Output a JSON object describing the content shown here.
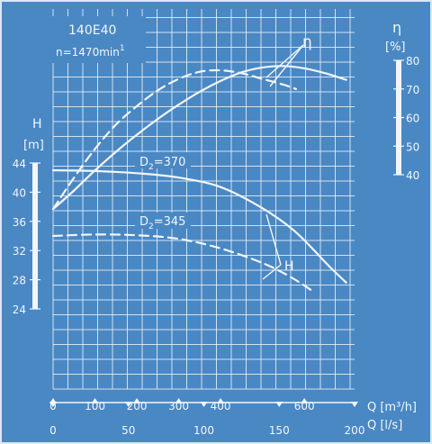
{
  "chart_data": {
    "type": "line",
    "title": "140E40",
    "subtitle": "n=1470min",
    "subtitle_sup": "1",
    "colors": {
      "background": "#4a88c4",
      "ink": "#f2f6fb"
    },
    "grid": true,
    "axes": {
      "H": {
        "label": "H",
        "unit": "[m]",
        "range": [
          24,
          44
        ],
        "ticks": [
          "24",
          "28",
          "32",
          "36",
          "40",
          "44"
        ]
      },
      "eta": {
        "label": "η",
        "unit": "[%]",
        "range": [
          40,
          80
        ],
        "ticks": [
          "40",
          "50",
          "60",
          "70",
          "80"
        ]
      },
      "Q_m3h": {
        "label": "Q [m³/h]",
        "range": [
          0,
          720
        ],
        "ticks": [
          "0",
          "100",
          "200",
          "300",
          "400",
          "600"
        ]
      },
      "Q_ls": {
        "label": "Q [l/s]",
        "range": [
          0,
          200
        ],
        "ticks": [
          "0",
          "50",
          "100",
          "150",
          "200"
        ]
      }
    },
    "annotations": {
      "head_curve_label": "H",
      "efficiency_curve_label": "η"
    },
    "series": [
      {
        "name": "D₂=370",
        "kind": "head",
        "style": "solid",
        "axis": "H",
        "label_parts": [
          "D",
          "2",
          "=370"
        ],
        "points": [
          [
            0,
            43
          ],
          [
            100,
            42.9
          ],
          [
            200,
            42.6
          ],
          [
            300,
            42
          ],
          [
            400,
            40.7
          ],
          [
            500,
            37.8
          ],
          [
            580,
            34.5
          ],
          [
            660,
            29.8
          ],
          [
            700,
            27.6
          ]
        ]
      },
      {
        "name": "D₂=345",
        "kind": "head",
        "style": "dashed",
        "axis": "H",
        "label_parts": [
          "D",
          "2",
          "=345"
        ],
        "points": [
          [
            0,
            34
          ],
          [
            100,
            34.2
          ],
          [
            200,
            34.1
          ],
          [
            300,
            33.6
          ],
          [
            400,
            32.3
          ],
          [
            500,
            30.3
          ],
          [
            560,
            28.6
          ],
          [
            600,
            27.2
          ],
          [
            625,
            26.2
          ]
        ]
      },
      {
        "name": "η D₂=370",
        "kind": "efficiency",
        "style": "solid",
        "axis": "eta",
        "points": [
          [
            0,
            28
          ],
          [
            50,
            34.5
          ],
          [
            100,
            41.5
          ],
          [
            150,
            48
          ],
          [
            200,
            54
          ],
          [
            250,
            59.5
          ],
          [
            300,
            64.5
          ],
          [
            350,
            69
          ],
          [
            400,
            72.8
          ],
          [
            450,
            75.8
          ],
          [
            500,
            77.5
          ],
          [
            550,
            78
          ],
          [
            600,
            77.2
          ],
          [
            650,
            75.5
          ],
          [
            700,
            73.2
          ]
        ]
      },
      {
        "name": "η D₂=345",
        "kind": "efficiency",
        "style": "dashed",
        "axis": "eta",
        "points": [
          [
            0,
            28
          ],
          [
            50,
            39
          ],
          [
            100,
            49
          ],
          [
            150,
            57.5
          ],
          [
            200,
            64
          ],
          [
            250,
            69.5
          ],
          [
            300,
            73.5
          ],
          [
            350,
            76
          ],
          [
            400,
            76.5
          ],
          [
            450,
            75.5
          ],
          [
            500,
            73.5
          ],
          [
            550,
            71.5
          ],
          [
            580,
            70
          ]
        ]
      }
    ]
  }
}
